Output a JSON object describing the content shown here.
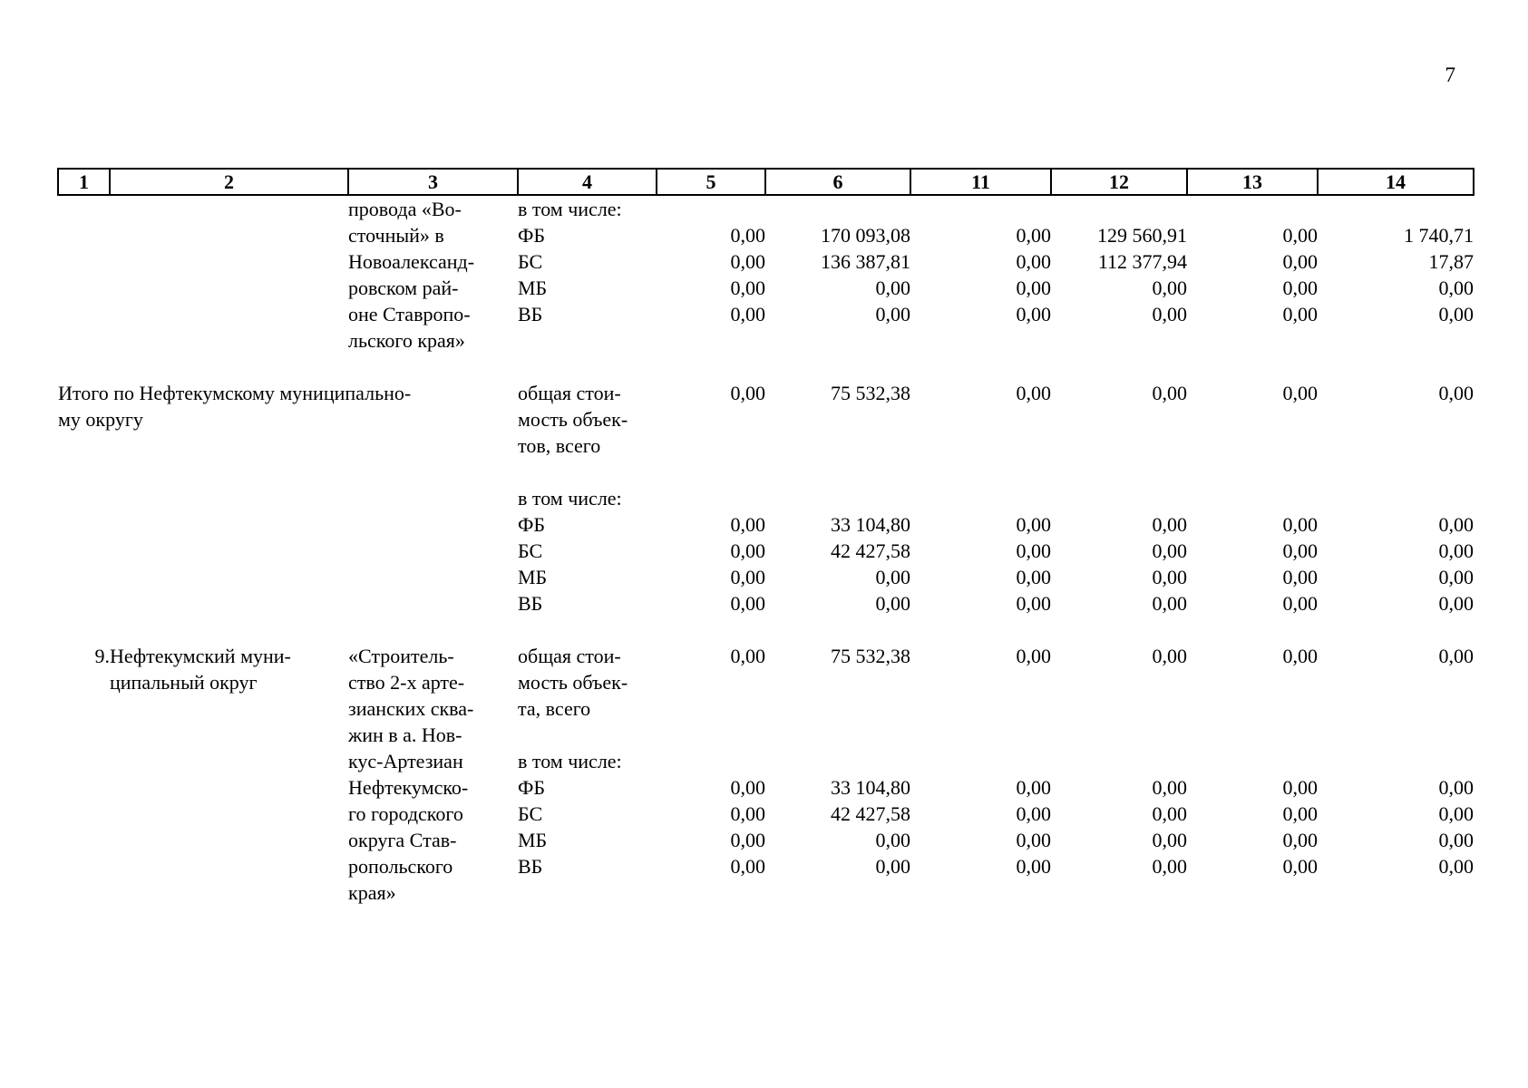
{
  "page": {
    "number": "7"
  },
  "table": {
    "header": [
      "1",
      "2",
      "3",
      "4",
      "5",
      "6",
      "11",
      "12",
      "13",
      "14"
    ],
    "rows": [
      {
        "c1": "",
        "c2": "",
        "c3": "провода «Во-",
        "c4": "в том числе:",
        "v": [
          "",
          "",
          "",
          "",
          "",
          ""
        ]
      },
      {
        "c1": "",
        "c2": "",
        "c3": "сточный» в",
        "c4": "ФБ",
        "v": [
          "0,00",
          "170 093,08",
          "0,00",
          "129 560,91",
          "0,00",
          "1 740,71"
        ]
      },
      {
        "c1": "",
        "c2": "",
        "c3": "Новоалександ-",
        "c4": "БС",
        "v": [
          "0,00",
          "136 387,81",
          "0,00",
          "112 377,94",
          "0,00",
          "17,87"
        ]
      },
      {
        "c1": "",
        "c2": "",
        "c3": "ровском рай-",
        "c4": "МБ",
        "v": [
          "0,00",
          "0,00",
          "0,00",
          "0,00",
          "0,00",
          "0,00"
        ]
      },
      {
        "c1": "",
        "c2": "",
        "c3": "оне Ставропо-",
        "c4": "ВБ",
        "v": [
          "0,00",
          "0,00",
          "0,00",
          "0,00",
          "0,00",
          "0,00"
        ]
      },
      {
        "c1": "",
        "c2": "",
        "c3": "льского края»",
        "c4": "",
        "v": [
          "",
          "",
          "",
          "",
          "",
          ""
        ]
      },
      {
        "blank": true
      },
      {
        "span": true,
        "c2": "Итого по Нефтекумскому муниципально-",
        "c4": "общая стои-",
        "v": [
          "0,00",
          "75 532,38",
          "0,00",
          "0,00",
          "0,00",
          "0,00"
        ]
      },
      {
        "span": true,
        "c2": "му округу",
        "c4": "мость объек-",
        "v": [
          "",
          "",
          "",
          "",
          "",
          ""
        ]
      },
      {
        "c1": "",
        "c2": "",
        "c3": "",
        "c4": "тов, всего",
        "v": [
          "",
          "",
          "",
          "",
          "",
          ""
        ]
      },
      {
        "blank": true
      },
      {
        "c1": "",
        "c2": "",
        "c3": "",
        "c4": "в том числе:",
        "v": [
          "",
          "",
          "",
          "",
          "",
          ""
        ]
      },
      {
        "c1": "",
        "c2": "",
        "c3": "",
        "c4": "ФБ",
        "v": [
          "0,00",
          "33 104,80",
          "0,00",
          "0,00",
          "0,00",
          "0,00"
        ]
      },
      {
        "c1": "",
        "c2": "",
        "c3": "",
        "c4": "БС",
        "v": [
          "0,00",
          "42 427,58",
          "0,00",
          "0,00",
          "0,00",
          "0,00"
        ]
      },
      {
        "c1": "",
        "c2": "",
        "c3": "",
        "c4": "МБ",
        "v": [
          "0,00",
          "0,00",
          "0,00",
          "0,00",
          "0,00",
          "0,00"
        ]
      },
      {
        "c1": "",
        "c2": "",
        "c3": "",
        "c4": "ВБ",
        "v": [
          "0,00",
          "0,00",
          "0,00",
          "0,00",
          "0,00",
          "0,00"
        ]
      },
      {
        "blank": true
      },
      {
        "c1": "9.",
        "c2": "Нефтекумский муни-",
        "c3": "«Строитель-",
        "c4": "общая стои-",
        "v": [
          "0,00",
          "75 532,38",
          "0,00",
          "0,00",
          "0,00",
          "0,00"
        ]
      },
      {
        "c1": "",
        "c2": "ципальный округ",
        "c3": "ство 2-х арте-",
        "c4": "мость объек-",
        "v": [
          "",
          "",
          "",
          "",
          "",
          ""
        ]
      },
      {
        "c1": "",
        "c2": "",
        "c3": "зианских сква-",
        "c4": "та, всего",
        "v": [
          "",
          "",
          "",
          "",
          "",
          ""
        ]
      },
      {
        "c1": "",
        "c2": "",
        "c3": "жин в а. Нов-",
        "c4": "",
        "v": [
          "",
          "",
          "",
          "",
          "",
          ""
        ]
      },
      {
        "c1": "",
        "c2": "",
        "c3": "кус-Артезиан",
        "c4": "в том числе:",
        "v": [
          "",
          "",
          "",
          "",
          "",
          ""
        ]
      },
      {
        "c1": "",
        "c2": "",
        "c3": "Нефтекумско-",
        "c4": "ФБ",
        "v": [
          "0,00",
          "33 104,80",
          "0,00",
          "0,00",
          "0,00",
          "0,00"
        ]
      },
      {
        "c1": "",
        "c2": "",
        "c3": "го городского",
        "c4": "БС",
        "v": [
          "0,00",
          "42 427,58",
          "0,00",
          "0,00",
          "0,00",
          "0,00"
        ]
      },
      {
        "c1": "",
        "c2": "",
        "c3": "округа Став-",
        "c4": "МБ",
        "v": [
          "0,00",
          "0,00",
          "0,00",
          "0,00",
          "0,00",
          "0,00"
        ]
      },
      {
        "c1": "",
        "c2": "",
        "c3": "ропольского",
        "c4": "ВБ",
        "v": [
          "0,00",
          "0,00",
          "0,00",
          "0,00",
          "0,00",
          "0,00"
        ]
      },
      {
        "c1": "",
        "c2": "",
        "c3": "края»",
        "c4": "",
        "v": [
          "",
          "",
          "",
          "",
          "",
          ""
        ]
      }
    ]
  }
}
